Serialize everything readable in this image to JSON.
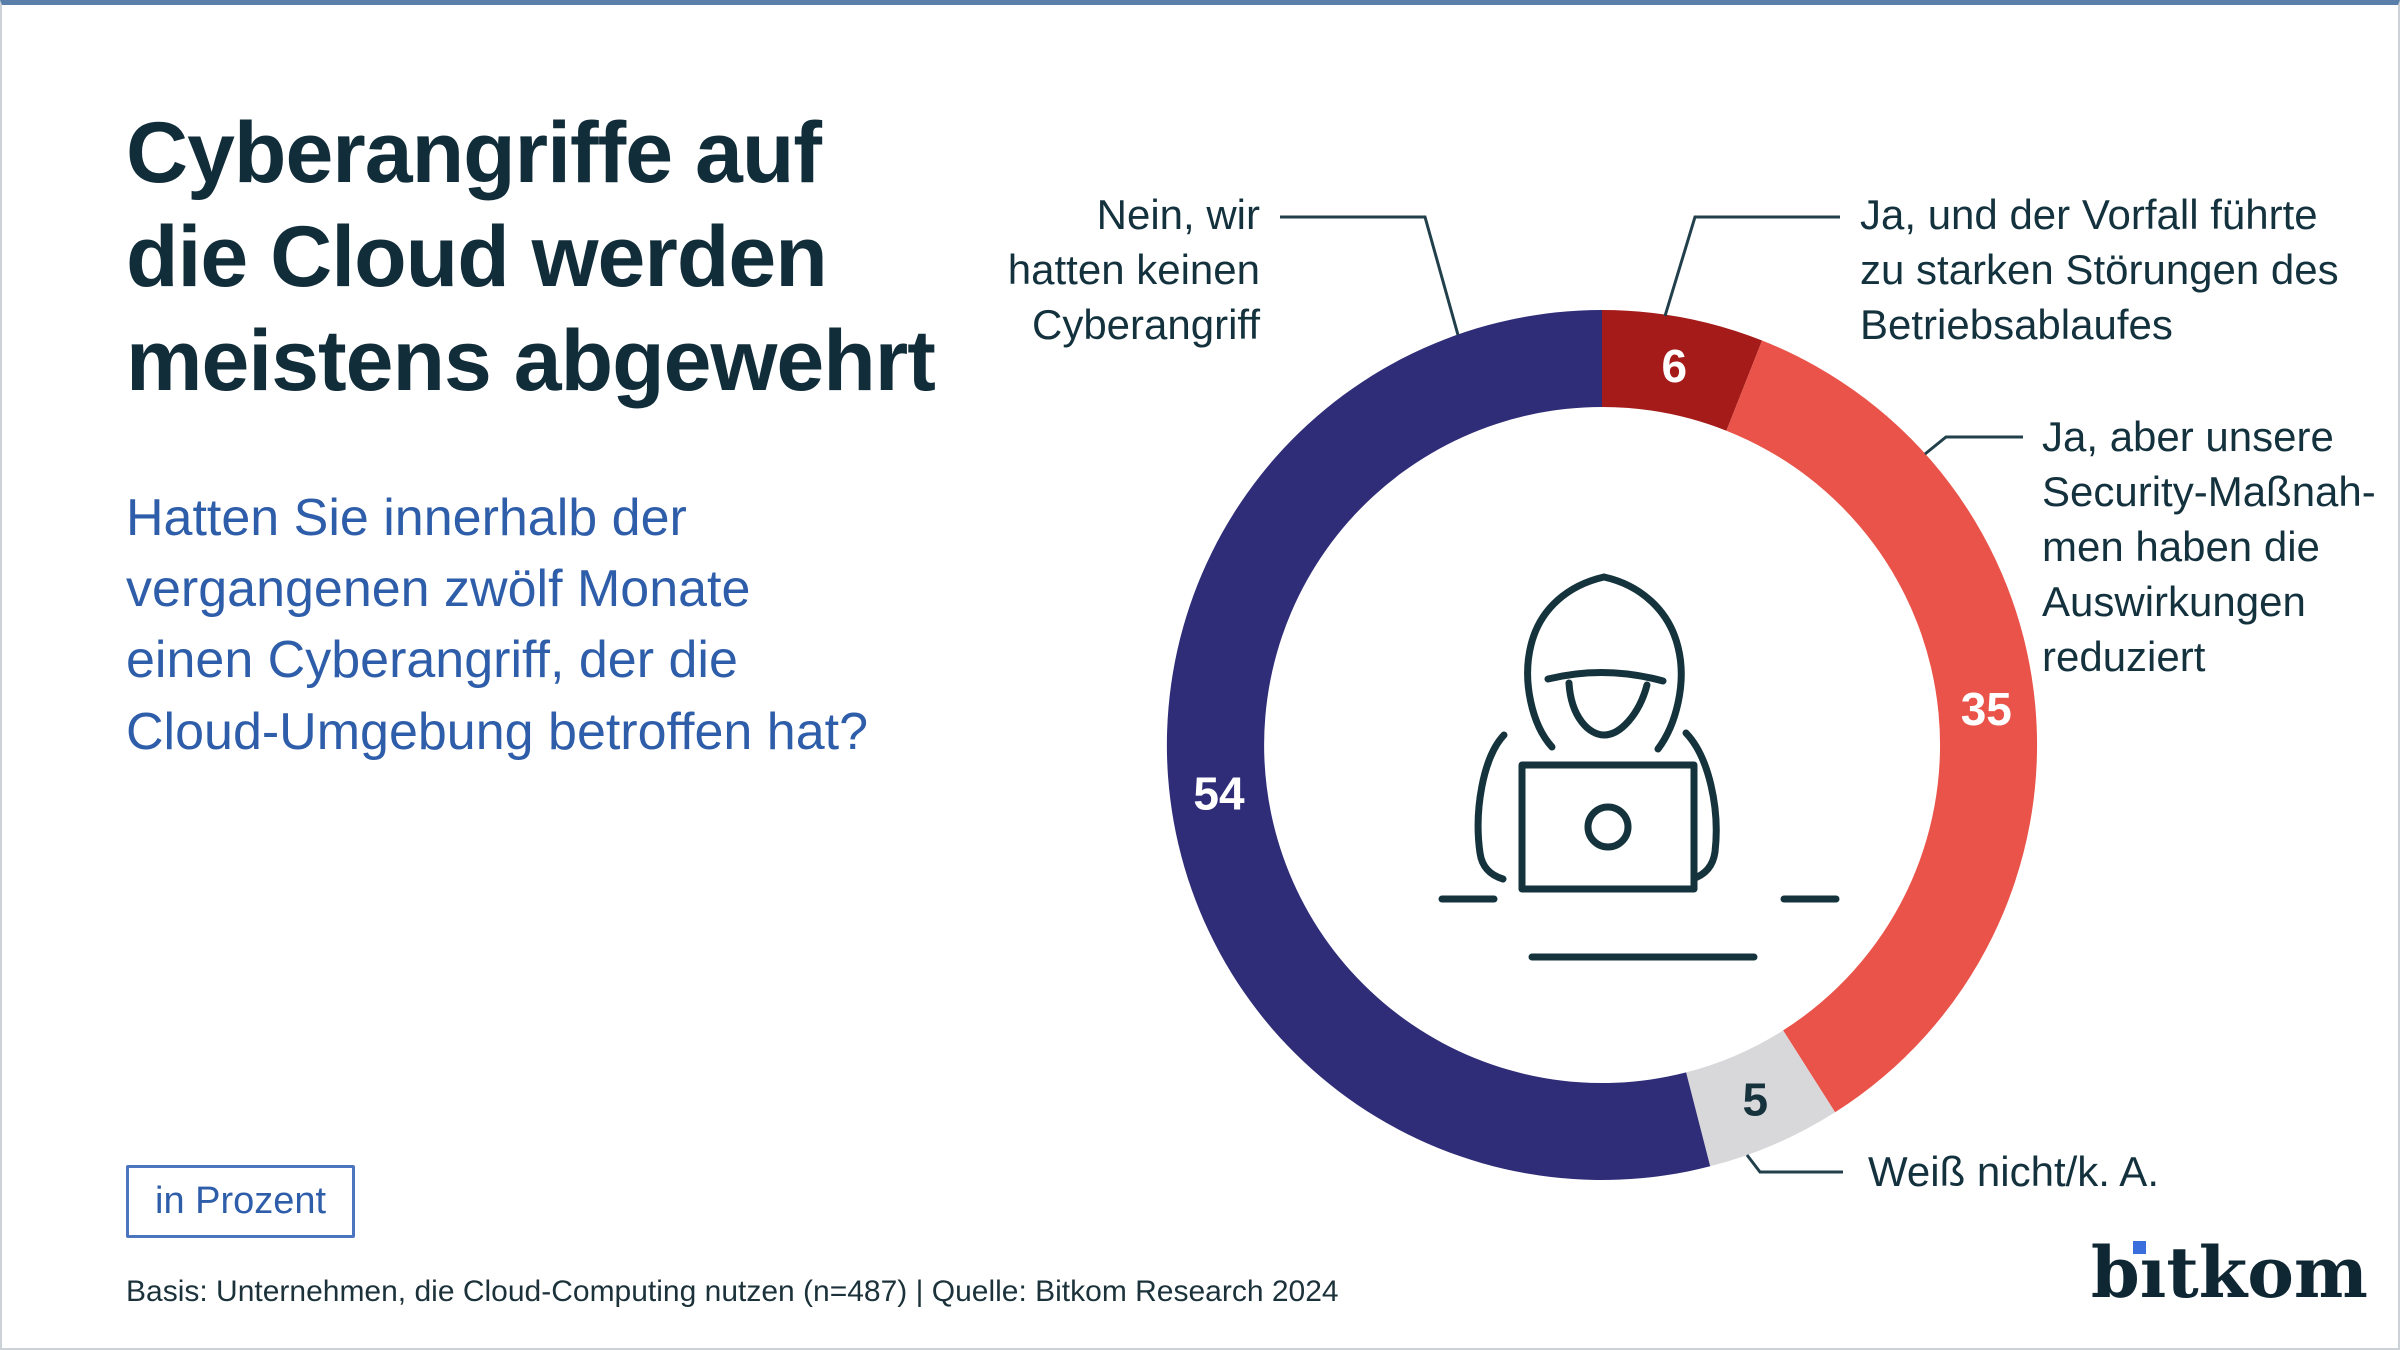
{
  "header": {
    "title": "Cyberangriffe auf\ndie Cloud werden\nmeistens abgewehrt",
    "subtitle": "Hatten Sie innerhalb der\nvergangenen zwölf Monate\neinen Cyberangriff, der die\nCloud-Umgebung betroffen hat?"
  },
  "unit_badge": "in Prozent",
  "footnote": "Basis: Unternehmen, die Cloud-Computing nutzen (n=487) | Quelle: Bitkom Research 2024",
  "logo": {
    "text": "bitkom",
    "wordmark_color": "#0f2733",
    "i_dot_color": "#3a6edd"
  },
  "callouts": {
    "nein": "Nein, wir\nhatten keinen\nCyberangriff",
    "ja_und": "Ja, und der Vorfall führte\nzu starken Störungen des\nBetriebsablaufes",
    "ja_aber": "Ja, aber unsere\nSecurity-Maßnah-\nmen haben die\nAuswirkungen\nreduziert",
    "weiss_nicht": "Weiß nicht/k. A."
  },
  "chart_data": {
    "type": "pie",
    "subtype": "donut",
    "unit": "percent",
    "question": "Hatten Sie innerhalb der vergangenen zwölf Monate einen Cyberangriff, der die Cloud-Umgebung betroffen hat?",
    "start_angle_deg": 0,
    "direction": "clockwise",
    "legend_position": "callout-labels",
    "center_icon": "hooded-hacker-with-laptop-icon",
    "segments": [
      {
        "label": "Ja, und der Vorfall führte zu starken Störungen des Betriebsablaufes",
        "value": 6,
        "color": "#a41b19",
        "value_color": "#ffffff"
      },
      {
        "label": "Ja, aber unsere Security-Maßnahmen haben die Auswirkungen reduziert",
        "value": 35,
        "color": "#ea5349",
        "value_color": "#ffffff"
      },
      {
        "label": "Weiß nicht/k. A.",
        "value": 5,
        "color": "#d8d8da",
        "value_color": "#16323c"
      },
      {
        "label": "Nein, wir hatten keinen Cyberangriff",
        "value": 54,
        "color": "#302d78",
        "value_color": "#ffffff"
      }
    ]
  }
}
